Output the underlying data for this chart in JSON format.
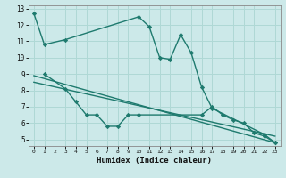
{
  "xlabel": "Humidex (Indice chaleur)",
  "xlim": [
    -0.5,
    23.5
  ],
  "ylim": [
    4.6,
    13.2
  ],
  "yticks": [
    5,
    6,
    7,
    8,
    9,
    10,
    11,
    12,
    13
  ],
  "xticks": [
    0,
    1,
    2,
    3,
    4,
    5,
    6,
    7,
    8,
    9,
    10,
    11,
    12,
    13,
    14,
    15,
    16,
    17,
    18,
    19,
    20,
    21,
    22,
    23
  ],
  "bg_color": "#cce9e9",
  "line_color": "#1e7a6e",
  "grid_color": "#afd8d5",
  "series1_x": [
    0,
    1,
    3,
    10,
    11,
    12,
    13,
    14,
    15,
    16,
    17,
    22,
    23
  ],
  "series1_y": [
    12.7,
    10.8,
    11.1,
    12.5,
    11.9,
    10.0,
    9.9,
    11.4,
    10.3,
    8.2,
    6.9,
    5.3,
    4.8
  ],
  "series2_x": [
    1,
    3,
    4,
    5,
    6,
    7,
    8,
    9,
    10,
    16,
    17,
    18,
    19,
    20,
    21,
    22,
    23
  ],
  "series2_y": [
    9.0,
    8.1,
    7.3,
    6.5,
    6.5,
    5.8,
    5.8,
    6.5,
    6.5,
    6.5,
    7.0,
    6.5,
    6.2,
    6.0,
    5.4,
    5.2,
    4.8
  ],
  "series3_x": [
    0,
    23
  ],
  "series3_y": [
    8.9,
    4.8
  ],
  "series4_x": [
    0,
    23
  ],
  "series4_y": [
    8.5,
    5.2
  ]
}
